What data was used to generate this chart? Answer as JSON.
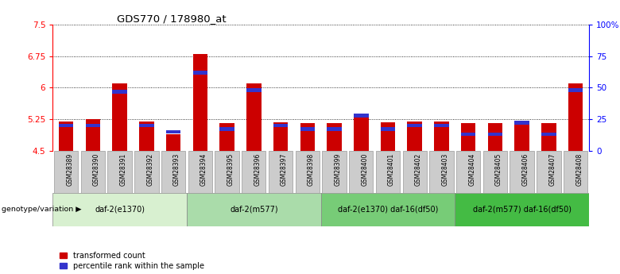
{
  "title": "GDS770 / 178980_at",
  "samples": [
    "GSM28389",
    "GSM28390",
    "GSM28391",
    "GSM28392",
    "GSM28393",
    "GSM28394",
    "GSM28395",
    "GSM28396",
    "GSM28397",
    "GSM28398",
    "GSM28399",
    "GSM28400",
    "GSM28401",
    "GSM28402",
    "GSM28403",
    "GSM28404",
    "GSM28405",
    "GSM28406",
    "GSM28407",
    "GSM28408"
  ],
  "transformed_count": [
    5.2,
    5.25,
    6.1,
    5.2,
    4.9,
    6.8,
    5.15,
    6.1,
    5.18,
    5.15,
    5.15,
    5.38,
    5.18,
    5.2,
    5.2,
    5.15,
    5.15,
    5.22,
    5.15,
    6.1
  ],
  "percentile_rank": [
    20,
    20,
    47,
    20,
    15,
    62,
    17,
    48,
    20,
    17,
    17,
    28,
    17,
    20,
    20,
    13,
    13,
    22,
    13,
    48
  ],
  "ymin": 4.5,
  "ymax": 7.5,
  "yticks": [
    4.5,
    5.25,
    6.0,
    6.75,
    7.5
  ],
  "ytick_labels": [
    "4.5",
    "5.25",
    "6",
    "6.75",
    "7.5"
  ],
  "right_yticks": [
    0,
    25,
    50,
    75,
    100
  ],
  "right_ytick_labels": [
    "0",
    "25",
    "50",
    "75",
    "100%"
  ],
  "bar_color_red": "#cc0000",
  "bar_color_blue": "#3333cc",
  "group_bg_colors": [
    "#d8f0d0",
    "#aadcaa",
    "#77cc77",
    "#44bb44"
  ],
  "groups": [
    {
      "label": "daf-2(e1370)",
      "start": 0,
      "end": 5
    },
    {
      "label": "daf-2(m577)",
      "start": 5,
      "end": 10
    },
    {
      "label": "daf-2(e1370) daf-16(df50)",
      "start": 10,
      "end": 15
    },
    {
      "label": "daf-2(m577) daf-16(df50)",
      "start": 15,
      "end": 20
    }
  ],
  "group_label_prefix": "genotype/variation",
  "legend_red": "transformed count",
  "legend_blue": "percentile rank within the sample",
  "bar_width": 0.55,
  "label_box_color": "#cccccc",
  "label_box_edge": "#999999"
}
